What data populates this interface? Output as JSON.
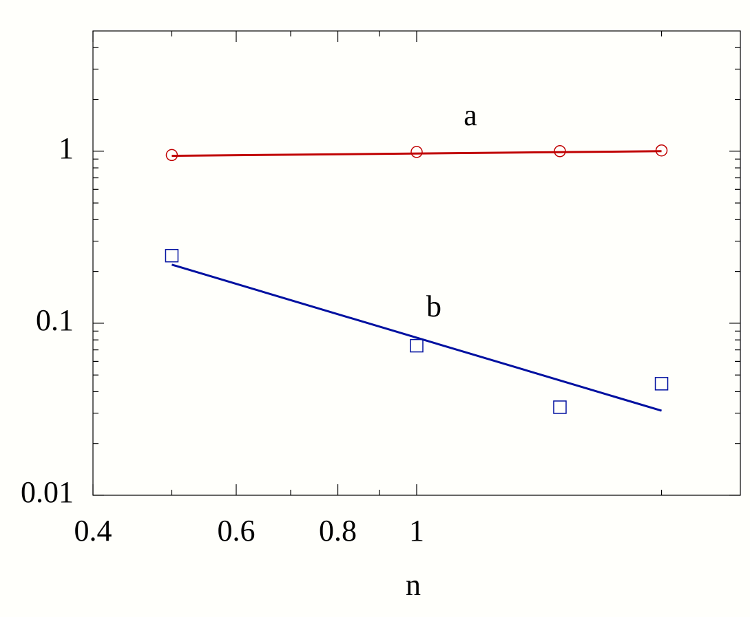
{
  "chart_data": {
    "type": "scatter",
    "xlabel": "n",
    "xscale": "log",
    "yscale": "log",
    "xlim": [
      0.4,
      2.5
    ],
    "ylim": [
      0.01,
      5
    ],
    "xticks": [
      0.4,
      0.6,
      0.8,
      1
    ],
    "yticks": [
      0.01,
      0.1,
      1
    ],
    "xticks_minor": [
      0.5,
      0.7,
      0.9,
      2
    ],
    "yticks_minor": [
      0.02,
      0.03,
      0.04,
      0.05,
      0.06,
      0.07,
      0.08,
      0.09,
      0.2,
      0.3,
      0.4,
      0.5,
      0.6,
      0.7,
      0.8,
      0.9,
      2,
      3,
      4
    ],
    "series": [
      {
        "name": "a",
        "color": "#c00000",
        "marker": "circle",
        "x": [
          0.5,
          1,
          1.5,
          2
        ],
        "values": [
          0.95,
          0.99,
          1.0,
          1.01
        ],
        "fit": {
          "x": [
            0.5,
            2
          ],
          "values": [
            0.94,
            1.0
          ]
        }
      },
      {
        "name": "b",
        "color": "#0010a0",
        "marker": "square",
        "x": [
          0.5,
          1,
          1.5,
          2
        ],
        "values": [
          0.247,
          0.074,
          0.0325,
          0.0445
        ],
        "fit": {
          "x": [
            0.5,
            2
          ],
          "values": [
            0.219,
            0.031
          ]
        }
      }
    ]
  }
}
